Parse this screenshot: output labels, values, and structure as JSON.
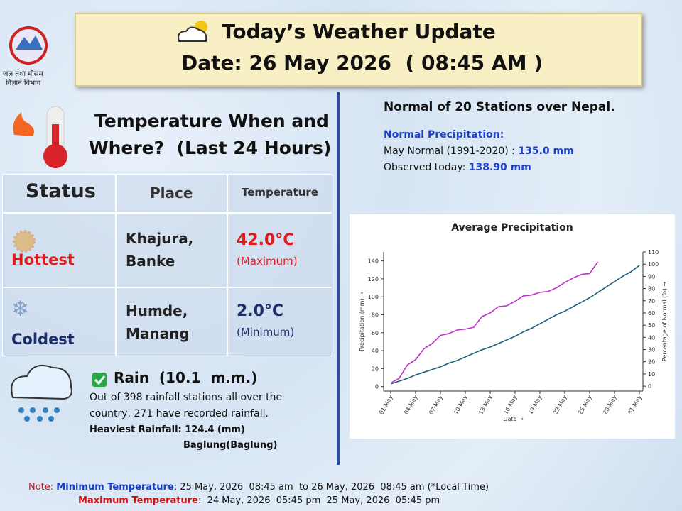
{
  "header": {
    "title": "Today’s Weather Update",
    "date": "Date: 26 May 2026  ( 08:45 AM )",
    "logo_text": [
      "जल तथा मौसम",
      "विज्ञान विभाग"
    ]
  },
  "temperature": {
    "title": [
      "Temperature When and",
      "Where?  (Last 24 Hours)"
    ],
    "columns": [
      "Status",
      "Place",
      "Temperature"
    ],
    "rows": [
      {
        "status": "Hottest",
        "place": [
          "Khajura,",
          "Banke"
        ],
        "value": "42.0°C",
        "kind": "(Maximum)"
      },
      {
        "status": "Coldest",
        "place": [
          "Humde,",
          "Manang"
        ],
        "value": "2.0°C",
        "kind": "(Minimum)"
      }
    ]
  },
  "rain": {
    "title": "Rain  (10.1  m.m.)",
    "text_lines": [
      "Out of 398 rainfall stations all over the",
      "country, 271 have recorded rainfall."
    ],
    "heaviest": "Heaviest Rainfall: 124.4 (mm)",
    "heaviest_place": "Baglung(Baglung)"
  },
  "normal": {
    "title": "Normal of 20 Stations over Nepal.",
    "subtitle": "Normal Precipitation:",
    "normal_label": "May Normal (1991-2020) : ",
    "normal_value": "135.0 mm",
    "observed_label": "Observed today: ",
    "observed_value": "138.90 mm"
  },
  "chart_data": {
    "type": "line",
    "title": "Average Precipitation",
    "x_label": "Date →",
    "y_label": "Precipitation (mm) →",
    "y2_label": "Percentage of Normal (%) →",
    "categories": [
      "01-May",
      null,
      null,
      "04-May",
      null,
      null,
      "07-May",
      null,
      null,
      "10-May",
      null,
      null,
      "13-May",
      null,
      null,
      "16-May",
      null,
      null,
      "19-May",
      null,
      null,
      "22-May",
      null,
      null,
      "25-May",
      null,
      null,
      "28-May",
      null,
      null,
      "31-May"
    ],
    "series": [
      {
        "color": "#1f5f7a",
        "values": [
          3,
          6,
          9,
          13,
          16,
          19,
          22,
          26,
          29,
          33,
          37,
          41,
          44,
          48,
          52,
          56,
          61,
          65,
          70,
          75,
          80,
          84,
          89,
          94,
          99,
          105,
          111,
          117,
          123,
          128,
          135
        ]
      },
      {
        "color": "#c030c8",
        "values": [
          4,
          9,
          24,
          30,
          42,
          48,
          57,
          59,
          63,
          64,
          66,
          78,
          82,
          89,
          90,
          95,
          101,
          102,
          105,
          106,
          110,
          116,
          121,
          125,
          126,
          139,
          null,
          null,
          null,
          null,
          null
        ]
      }
    ],
    "ylim": [
      -5,
      150
    ],
    "yticks": [
      0,
      20,
      40,
      60,
      80,
      100,
      120,
      140
    ],
    "y2lim": [
      -4,
      110
    ],
    "y2ticks": [
      0,
      10,
      20,
      30,
      40,
      50,
      60,
      70,
      80,
      90,
      100,
      110
    ]
  },
  "notes": {
    "prefix": "Note: ",
    "min_label": "Minimum Temperature",
    "min_text": ": 25 May, 2026  08:45 am  to 26 May, 2026  08:45 am (*Local Time)",
    "max_label": "Maximum Temperature",
    "max_text": ":  24 May, 2026  05:45 pm  25 May, 2026  05:45 pm"
  }
}
